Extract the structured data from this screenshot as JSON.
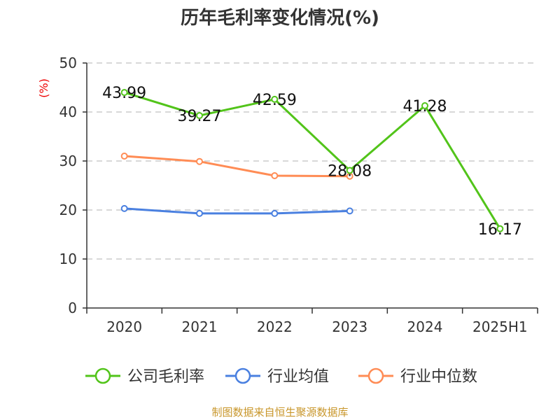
{
  "chart_data": {
    "type": "line",
    "title": "历年毛利率变化情况(%)",
    "ylabel": "(%)",
    "xlabel": "",
    "ylim": [
      0,
      50
    ],
    "yticks": [
      0,
      10,
      20,
      30,
      40,
      50
    ],
    "categories": [
      "2020",
      "2021",
      "2022",
      "2023",
      "2024",
      "2025H1"
    ],
    "grid": true,
    "legend_position": "bottom",
    "series": [
      {
        "name": "公司毛利率",
        "color": "#52c41a",
        "values": [
          43.99,
          39.27,
          42.59,
          28.08,
          41.28,
          16.17
        ],
        "labels": [
          "43.99",
          "39.27",
          "42.59",
          "28.08",
          "41.28",
          "16.17"
        ]
      },
      {
        "name": "行业均值",
        "color": "#4a80e0",
        "values": [
          20.3,
          19.3,
          19.3,
          19.8,
          null,
          null
        ]
      },
      {
        "name": "行业中位数",
        "color": "#ff8c55",
        "values": [
          31.0,
          29.9,
          27.0,
          26.9,
          null,
          null
        ]
      }
    ]
  },
  "source": "制图数据来自恒生聚源数据库"
}
